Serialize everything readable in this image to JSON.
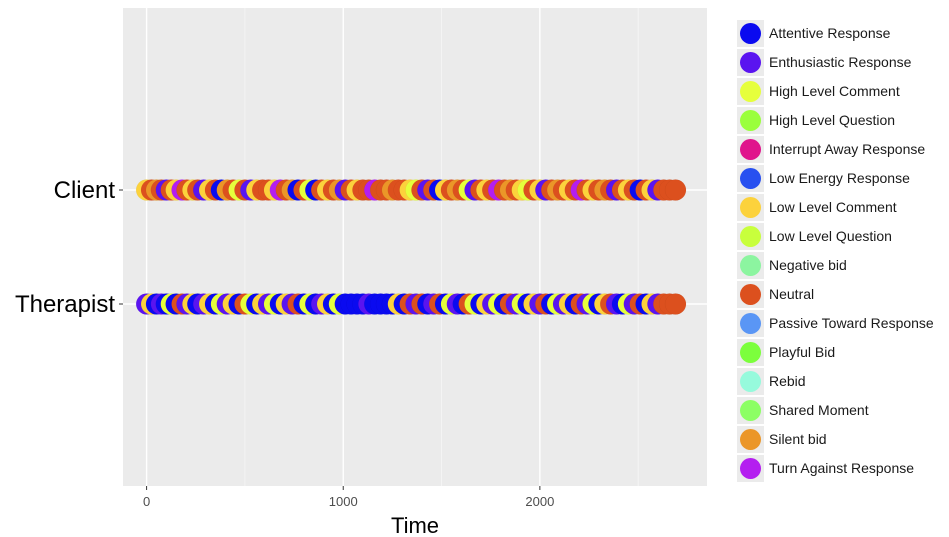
{
  "chart_data": {
    "type": "scatter",
    "title": "",
    "xlabel": "Time",
    "ylabel": "",
    "xlim": [
      -120,
      2850
    ],
    "x_ticks": [
      0,
      1000,
      2000
    ],
    "x_tick_labels": [
      "0",
      "1000",
      "2000"
    ],
    "categories": [
      "Client",
      "Therapist"
    ],
    "grid": true,
    "legend_position": "right",
    "legend": [
      {
        "name": "Attentive Response",
        "color": "#0a0af0"
      },
      {
        "name": "Enthusiastic Response",
        "color": "#5a14f0"
      },
      {
        "name": "High Level Comment",
        "color": "#e6ff3c"
      },
      {
        "name": "High Level Question",
        "color": "#9aff3c"
      },
      {
        "name": "Interrupt Away Response",
        "color": "#e0148c"
      },
      {
        "name": "Low Energy Response",
        "color": "#2850f0"
      },
      {
        "name": "Low Level Comment",
        "color": "#fcd23c"
      },
      {
        "name": "Low Level Question",
        "color": "#c8ff3c"
      },
      {
        "name": "Negative bid",
        "color": "#8cf5a0"
      },
      {
        "name": "Neutral",
        "color": "#dc501e"
      },
      {
        "name": "Passive Toward Response",
        "color": "#5a96f5"
      },
      {
        "name": "Playful Bid",
        "color": "#7cff3c"
      },
      {
        "name": "Rebid",
        "color": "#96fadc"
      },
      {
        "name": "Shared Moment",
        "color": "#8cff64"
      },
      {
        "name": "Silent bid",
        "color": "#eb9628"
      },
      {
        "name": "Turn Against Response",
        "color": "#b41ef0"
      }
    ],
    "series": [
      {
        "category": "Client",
        "points": [
          {
            "x": 0,
            "label": "Low Level Comment"
          },
          {
            "x": 25,
            "label": "Neutral"
          },
          {
            "x": 50,
            "label": "Silent bid"
          },
          {
            "x": 75,
            "label": "Neutral"
          },
          {
            "x": 100,
            "label": "Enthusiastic Response"
          },
          {
            "x": 125,
            "label": "Neutral"
          },
          {
            "x": 150,
            "label": "Low Level Comment"
          },
          {
            "x": 180,
            "label": "Turn Against Response"
          },
          {
            "x": 205,
            "label": "Neutral"
          },
          {
            "x": 235,
            "label": "Low Level Comment"
          },
          {
            "x": 260,
            "label": "Neutral"
          },
          {
            "x": 290,
            "label": "Enthusiastic Response"
          },
          {
            "x": 320,
            "label": "Low Level Comment"
          },
          {
            "x": 350,
            "label": "Neutral"
          },
          {
            "x": 380,
            "label": "Attentive Response"
          },
          {
            "x": 410,
            "label": "Silent bid"
          },
          {
            "x": 440,
            "label": "Neutral"
          },
          {
            "x": 470,
            "label": "High Level Comment"
          },
          {
            "x": 500,
            "label": "Neutral"
          },
          {
            "x": 530,
            "label": "Enthusiastic Response"
          },
          {
            "x": 560,
            "label": "Low Level Comment"
          },
          {
            "x": 590,
            "label": "Neutral"
          },
          {
            "x": 620,
            "label": "Neutral"
          },
          {
            "x": 650,
            "label": "Low Level Comment"
          },
          {
            "x": 680,
            "label": "Turn Against Response"
          },
          {
            "x": 710,
            "label": "Neutral"
          },
          {
            "x": 740,
            "label": "Silent bid"
          },
          {
            "x": 770,
            "label": "Attentive Response"
          },
          {
            "x": 800,
            "label": "Neutral"
          },
          {
            "x": 830,
            "label": "High Level Comment"
          },
          {
            "x": 860,
            "label": "Attentive Response"
          },
          {
            "x": 890,
            "label": "Neutral"
          },
          {
            "x": 920,
            "label": "Low Level Comment"
          },
          {
            "x": 950,
            "label": "Neutral"
          },
          {
            "x": 980,
            "label": "Silent bid"
          },
          {
            "x": 1010,
            "label": "Enthusiastic Response"
          },
          {
            "x": 1040,
            "label": "Neutral"
          },
          {
            "x": 1070,
            "label": "Low Level Comment"
          },
          {
            "x": 1100,
            "label": "Neutral"
          },
          {
            "x": 1130,
            "label": "Neutral"
          },
          {
            "x": 1160,
            "label": "Turn Against Response"
          },
          {
            "x": 1190,
            "label": "Neutral"
          },
          {
            "x": 1220,
            "label": "Neutral"
          },
          {
            "x": 1250,
            "label": "Silent bid"
          },
          {
            "x": 1280,
            "label": "Neutral"
          },
          {
            "x": 1310,
            "label": "Neutral"
          },
          {
            "x": 1340,
            "label": "Low Level Comment"
          },
          {
            "x": 1370,
            "label": "High Level Comment"
          },
          {
            "x": 1400,
            "label": "Neutral"
          },
          {
            "x": 1430,
            "label": "Enthusiastic Response"
          },
          {
            "x": 1460,
            "label": "Neutral"
          },
          {
            "x": 1490,
            "label": "Attentive Response"
          },
          {
            "x": 1520,
            "label": "Low Level Comment"
          },
          {
            "x": 1550,
            "label": "Neutral"
          },
          {
            "x": 1580,
            "label": "Silent bid"
          },
          {
            "x": 1610,
            "label": "Neutral"
          },
          {
            "x": 1640,
            "label": "High Level Comment"
          },
          {
            "x": 1670,
            "label": "Enthusiastic Response"
          },
          {
            "x": 1700,
            "label": "Neutral"
          },
          {
            "x": 1730,
            "label": "Low Level Comment"
          },
          {
            "x": 1760,
            "label": "Neutral"
          },
          {
            "x": 1790,
            "label": "Turn Against Response"
          },
          {
            "x": 1820,
            "label": "Neutral"
          },
          {
            "x": 1850,
            "label": "Silent bid"
          },
          {
            "x": 1880,
            "label": "Neutral"
          },
          {
            "x": 1910,
            "label": "Low Level Comment"
          },
          {
            "x": 1940,
            "label": "High Level Comment"
          },
          {
            "x": 1970,
            "label": "Neutral"
          },
          {
            "x": 2000,
            "label": "Low Level Comment"
          },
          {
            "x": 2030,
            "label": "Enthusiastic Response"
          },
          {
            "x": 2060,
            "label": "Neutral"
          },
          {
            "x": 2090,
            "label": "Silent bid"
          },
          {
            "x": 2120,
            "label": "Neutral"
          },
          {
            "x": 2150,
            "label": "Low Level Comment"
          },
          {
            "x": 2180,
            "label": "Neutral"
          },
          {
            "x": 2210,
            "label": "Turn Against Response"
          },
          {
            "x": 2240,
            "label": "Neutral"
          },
          {
            "x": 2270,
            "label": "Low Level Comment"
          },
          {
            "x": 2300,
            "label": "Neutral"
          },
          {
            "x": 2330,
            "label": "Silent bid"
          },
          {
            "x": 2360,
            "label": "Neutral"
          },
          {
            "x": 2390,
            "label": "Enthusiastic Response"
          },
          {
            "x": 2420,
            "label": "Neutral"
          },
          {
            "x": 2450,
            "label": "Low Level Comment"
          },
          {
            "x": 2480,
            "label": "Neutral"
          },
          {
            "x": 2510,
            "label": "Attentive Response"
          },
          {
            "x": 2540,
            "label": "Neutral"
          },
          {
            "x": 2570,
            "label": "Low Level Comment"
          },
          {
            "x": 2600,
            "label": "Enthusiastic Response"
          },
          {
            "x": 2630,
            "label": "Neutral"
          },
          {
            "x": 2660,
            "label": "Neutral"
          },
          {
            "x": 2690,
            "label": "Neutral"
          }
        ]
      },
      {
        "category": "Therapist",
        "points": [
          {
            "x": 0,
            "label": "Enthusiastic Response"
          },
          {
            "x": 25,
            "label": "Low Level Comment"
          },
          {
            "x": 50,
            "label": "Attentive Response"
          },
          {
            "x": 75,
            "label": "Enthusiastic Response"
          },
          {
            "x": 100,
            "label": "Attentive Response"
          },
          {
            "x": 125,
            "label": "High Level Comment"
          },
          {
            "x": 150,
            "label": "Attentive Response"
          },
          {
            "x": 180,
            "label": "Neutral"
          },
          {
            "x": 205,
            "label": "Enthusiastic Response"
          },
          {
            "x": 235,
            "label": "Low Level Comment"
          },
          {
            "x": 260,
            "label": "Attentive Response"
          },
          {
            "x": 290,
            "label": "Enthusiastic Response"
          },
          {
            "x": 320,
            "label": "Low Level Comment"
          },
          {
            "x": 350,
            "label": "Attentive Response"
          },
          {
            "x": 380,
            "label": "High Level Comment"
          },
          {
            "x": 410,
            "label": "Enthusiastic Response"
          },
          {
            "x": 440,
            "label": "Low Level Comment"
          },
          {
            "x": 470,
            "label": "Attentive Response"
          },
          {
            "x": 500,
            "label": "Neutral"
          },
          {
            "x": 530,
            "label": "High Level Comment"
          },
          {
            "x": 560,
            "label": "Attentive Response"
          },
          {
            "x": 590,
            "label": "Low Level Comment"
          },
          {
            "x": 620,
            "label": "Enthusiastic Response"
          },
          {
            "x": 650,
            "label": "High Level Comment"
          },
          {
            "x": 680,
            "label": "Attentive Response"
          },
          {
            "x": 710,
            "label": "Low Level Comment"
          },
          {
            "x": 740,
            "label": "Enthusiastic Response"
          },
          {
            "x": 770,
            "label": "Neutral"
          },
          {
            "x": 800,
            "label": "Attentive Response"
          },
          {
            "x": 830,
            "label": "High Level Comment"
          },
          {
            "x": 860,
            "label": "Attentive Response"
          },
          {
            "x": 890,
            "label": "Enthusiastic Response"
          },
          {
            "x": 920,
            "label": "Low Level Comment"
          },
          {
            "x": 950,
            "label": "Attentive Response"
          },
          {
            "x": 980,
            "label": "High Level Comment"
          },
          {
            "x": 1010,
            "label": "Attentive Response"
          },
          {
            "x": 1040,
            "label": "Attentive Response"
          },
          {
            "x": 1070,
            "label": "Attentive Response"
          },
          {
            "x": 1100,
            "label": "Attentive Response"
          },
          {
            "x": 1130,
            "label": "Enthusiastic Response"
          },
          {
            "x": 1160,
            "label": "Attentive Response"
          },
          {
            "x": 1190,
            "label": "Attentive Response"
          },
          {
            "x": 1220,
            "label": "Attentive Response"
          },
          {
            "x": 1250,
            "label": "Attentive Response"
          },
          {
            "x": 1280,
            "label": "Low Level Comment"
          },
          {
            "x": 1310,
            "label": "Attentive Response"
          },
          {
            "x": 1340,
            "label": "Neutral"
          },
          {
            "x": 1370,
            "label": "Enthusiastic Response"
          },
          {
            "x": 1400,
            "label": "Neutral"
          },
          {
            "x": 1430,
            "label": "Attentive Response"
          },
          {
            "x": 1460,
            "label": "Enthusiastic Response"
          },
          {
            "x": 1490,
            "label": "Neutral"
          },
          {
            "x": 1520,
            "label": "Attentive Response"
          },
          {
            "x": 1550,
            "label": "High Level Comment"
          },
          {
            "x": 1580,
            "label": "Enthusiastic Response"
          },
          {
            "x": 1610,
            "label": "Attentive Response"
          },
          {
            "x": 1640,
            "label": "Neutral"
          },
          {
            "x": 1670,
            "label": "High Level Comment"
          },
          {
            "x": 1700,
            "label": "Attentive Response"
          },
          {
            "x": 1730,
            "label": "Low Level Comment"
          },
          {
            "x": 1760,
            "label": "Enthusiastic Response"
          },
          {
            "x": 1790,
            "label": "High Level Comment"
          },
          {
            "x": 1820,
            "label": "Attentive Response"
          },
          {
            "x": 1850,
            "label": "Neutral"
          },
          {
            "x": 1880,
            "label": "Enthusiastic Response"
          },
          {
            "x": 1910,
            "label": "High Level Comment"
          },
          {
            "x": 1940,
            "label": "Attentive Response"
          },
          {
            "x": 1970,
            "label": "Low Level Comment"
          },
          {
            "x": 2000,
            "label": "Enthusiastic Response"
          },
          {
            "x": 2030,
            "label": "Neutral"
          },
          {
            "x": 2060,
            "label": "Attentive Response"
          },
          {
            "x": 2090,
            "label": "High Level Comment"
          },
          {
            "x": 2120,
            "label": "Enthusiastic Response"
          },
          {
            "x": 2150,
            "label": "Low Level Comment"
          },
          {
            "x": 2180,
            "label": "Attentive Response"
          },
          {
            "x": 2210,
            "label": "Neutral"
          },
          {
            "x": 2240,
            "label": "Enthusiastic Response"
          },
          {
            "x": 2270,
            "label": "High Level Comment"
          },
          {
            "x": 2300,
            "label": "Attentive Response"
          },
          {
            "x": 2330,
            "label": "Low Level Comment"
          },
          {
            "x": 2360,
            "label": "Neutral"
          },
          {
            "x": 2390,
            "label": "Enthusiastic Response"
          },
          {
            "x": 2420,
            "label": "Attentive Response"
          },
          {
            "x": 2450,
            "label": "High Level Comment"
          },
          {
            "x": 2480,
            "label": "Enthusiastic Response"
          },
          {
            "x": 2510,
            "label": "Neutral"
          },
          {
            "x": 2540,
            "label": "Attentive Response"
          },
          {
            "x": 2570,
            "label": "Low Level Comment"
          },
          {
            "x": 2600,
            "label": "Enthusiastic Response"
          },
          {
            "x": 2630,
            "label": "Neutral"
          },
          {
            "x": 2660,
            "label": "Neutral"
          },
          {
            "x": 2690,
            "label": "Neutral"
          }
        ]
      }
    ]
  }
}
